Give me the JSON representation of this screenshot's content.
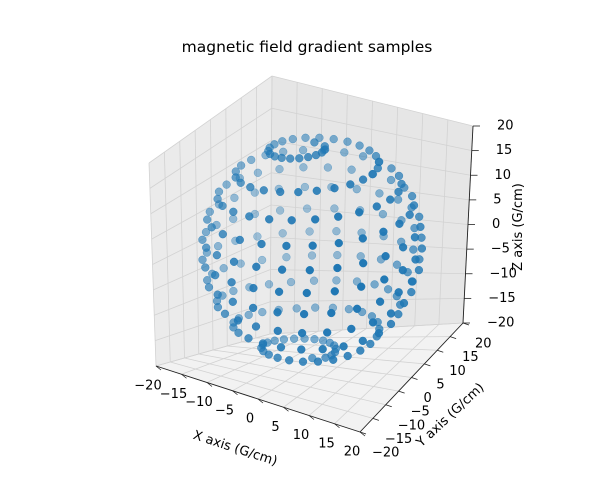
{
  "chart_data": {
    "type": "scatter",
    "title": "magnetic field gradient samples",
    "xlabel": "X axis (G/cm)",
    "ylabel": "Y axis (G/cm)",
    "zlabel": "Z axis (G/cm)",
    "xlim": [
      -20,
      20
    ],
    "ylim": [
      -20,
      20
    ],
    "zlim": [
      -20,
      20
    ],
    "x_ticks": [
      "−20",
      "−15",
      "−10",
      "−5",
      "0",
      "5",
      "10",
      "15",
      "20"
    ],
    "y_ticks": [
      "−20",
      "−15",
      "−10",
      "−5",
      "0",
      "5",
      "10",
      "15",
      "20"
    ],
    "z_ticks": [
      "−20",
      "−15",
      "−10",
      "−5",
      "0",
      "5",
      "10",
      "15",
      "20"
    ],
    "grid": true,
    "marker_color": "#1f77b4",
    "series": [
      {
        "shape": "spherical spiral",
        "radius": 19,
        "points": 250,
        "turns": 10,
        "z_range": [
          -19,
          19
        ]
      }
    ]
  }
}
